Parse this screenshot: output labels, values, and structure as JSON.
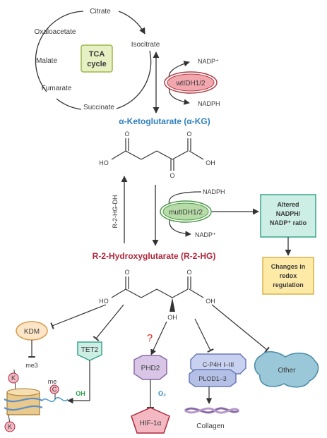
{
  "tca": {
    "title_line1": "TCA",
    "title_line2": "cycle",
    "citrate": "Citrate",
    "oxaloacetate": "Oxaloacetate",
    "malate": "Malate",
    "fumarate": "Fumarate",
    "succinate": "Succinate",
    "isocitrate": "Isocitrate"
  },
  "wt_enzyme": {
    "label": "wtIDH1/2",
    "nadp_plus": "NADP⁺",
    "nadph": "NADPH"
  },
  "akg": {
    "title": "α-Ketoglutarate (α-KG)",
    "ho": "HO",
    "oh": "OH",
    "o_left": "O",
    "o_right": "O",
    "o_bottom": "O"
  },
  "mut_enzyme": {
    "label": "mutIDH1/2",
    "nadph": "NADPH",
    "nadp_plus": "NADP⁺",
    "reverse_enzyme": "R-2-HG-DH"
  },
  "side_boxes": {
    "altered_line1": "Altered",
    "altered_line2": "NADPH/",
    "altered_line3": "NADP⁺ ratio",
    "changes_line1": "Changes in",
    "changes_line2": "redox",
    "changes_line3": "regulation"
  },
  "r2hg": {
    "title": "R-2-Hydroxyglutarate (R-2-HG)",
    "ho": "HO",
    "oh_right": "OH",
    "oh_bottom": "OH",
    "o_left": "O",
    "o_right": "O"
  },
  "targets": {
    "kdm": "KDM",
    "me3": "me3",
    "k": "K",
    "c": "C",
    "me": "me",
    "tet2": "TET2",
    "tet_oh": "OH",
    "question": "?",
    "phd2": "PHD2",
    "o2": "O₂",
    "hif": "HIF-1α",
    "cp4h": "C-P4H I–III",
    "plod": "PLOD1–3",
    "collagen": "Collagen",
    "other": "Other"
  },
  "colors": {
    "blue_title": "#2f80c0",
    "red_title": "#b0283c",
    "arrow": "#333333",
    "tca_box": "#e6f0c2",
    "tca_border": "#9bb84a",
    "wt_fill": "#f2a6ae",
    "wt_ring": "#b23a44",
    "mut_fill": "#b7dca8",
    "mut_ring": "#4a9a44",
    "teal_fill": "#cdeee4",
    "teal_border": "#3aa58e",
    "yellow_fill": "#fdeaa6",
    "yellow_border": "#d9b24a",
    "kdm_fill": "#fde5c8",
    "kdm_border": "#d89a4a",
    "phd_fill": "#d9c6e6",
    "phd_border": "#8a6aa6",
    "hif_fill": "#f3b8c2",
    "cp4h_fill": "#c8d2f0",
    "other_fill": "#9ac8d8",
    "question": "#e2231a"
  }
}
